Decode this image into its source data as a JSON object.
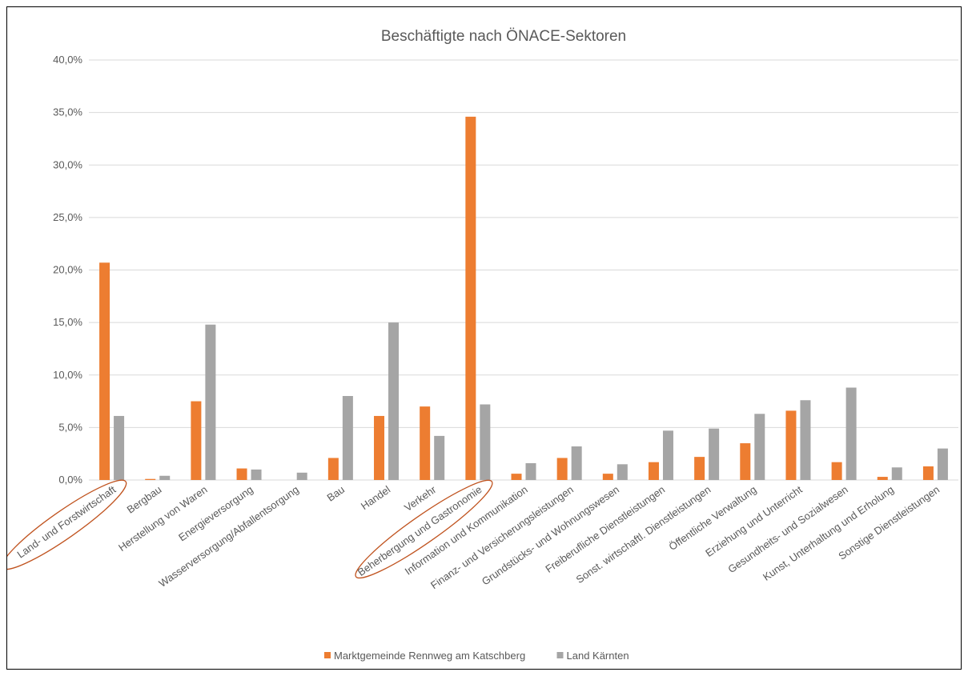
{
  "chart_data": {
    "type": "bar",
    "title": "Beschäftigte nach ÖNACE-Sektoren",
    "xlabel": "",
    "ylabel": "",
    "ylim": [
      0,
      40
    ],
    "y_ticks": [
      "0,0%",
      "5,0%",
      "10,0%",
      "15,0%",
      "20,0%",
      "25,0%",
      "30,0%",
      "35,0%",
      "40,0%"
    ],
    "y_tick_values": [
      0,
      5,
      10,
      15,
      20,
      25,
      30,
      35,
      40
    ],
    "grid": true,
    "legend_position": "bottom",
    "categories": [
      "Land- und Forstwirtschaft",
      "Bergbau",
      "Herstellung von Waren",
      "Energieversorgung",
      "Wasserversorgung/Abfallentsorgung",
      "Bau",
      "Handel",
      "Verkehr",
      "Beherbergung und Gastronomie",
      "Information und Kommunikation",
      "Finanz- und Versicherungsleistungen",
      "Grundstücks- und Wohnungswesen",
      "Freiberufliche Dienstleistungen",
      "Sonst. wirtschaftl. Dienstleistungen",
      "Öffentliche Verwaltung",
      "Erziehung und Unterricht",
      "Gesundheits- und Sozialwesen",
      "Kunst, Unterhaltung und Erholung",
      "Sonstige Dienstleistungen"
    ],
    "series": [
      {
        "name": "Marktgemeinde Rennweg am Katschberg",
        "color": "#ED7D31",
        "values": [
          20.7,
          0.1,
          7.5,
          1.1,
          0.0,
          2.1,
          6.1,
          7.0,
          34.6,
          0.6,
          2.1,
          0.6,
          1.7,
          2.2,
          3.5,
          6.6,
          1.7,
          0.3,
          1.3
        ]
      },
      {
        "name": "Land Kärnten",
        "color": "#A5A5A5",
        "values": [
          6.1,
          0.4,
          14.8,
          1.0,
          0.7,
          8.0,
          15.0,
          4.2,
          7.2,
          1.6,
          3.2,
          1.5,
          4.7,
          4.9,
          6.3,
          7.6,
          8.8,
          1.2,
          3.0
        ]
      }
    ],
    "annotations": {
      "highlighted_categories": [
        "Land- und Forstwirtschaft",
        "Beherbergung und Gastronomie"
      ],
      "highlight_color": "#C0531F",
      "highlight_shape": "ellipse"
    }
  }
}
